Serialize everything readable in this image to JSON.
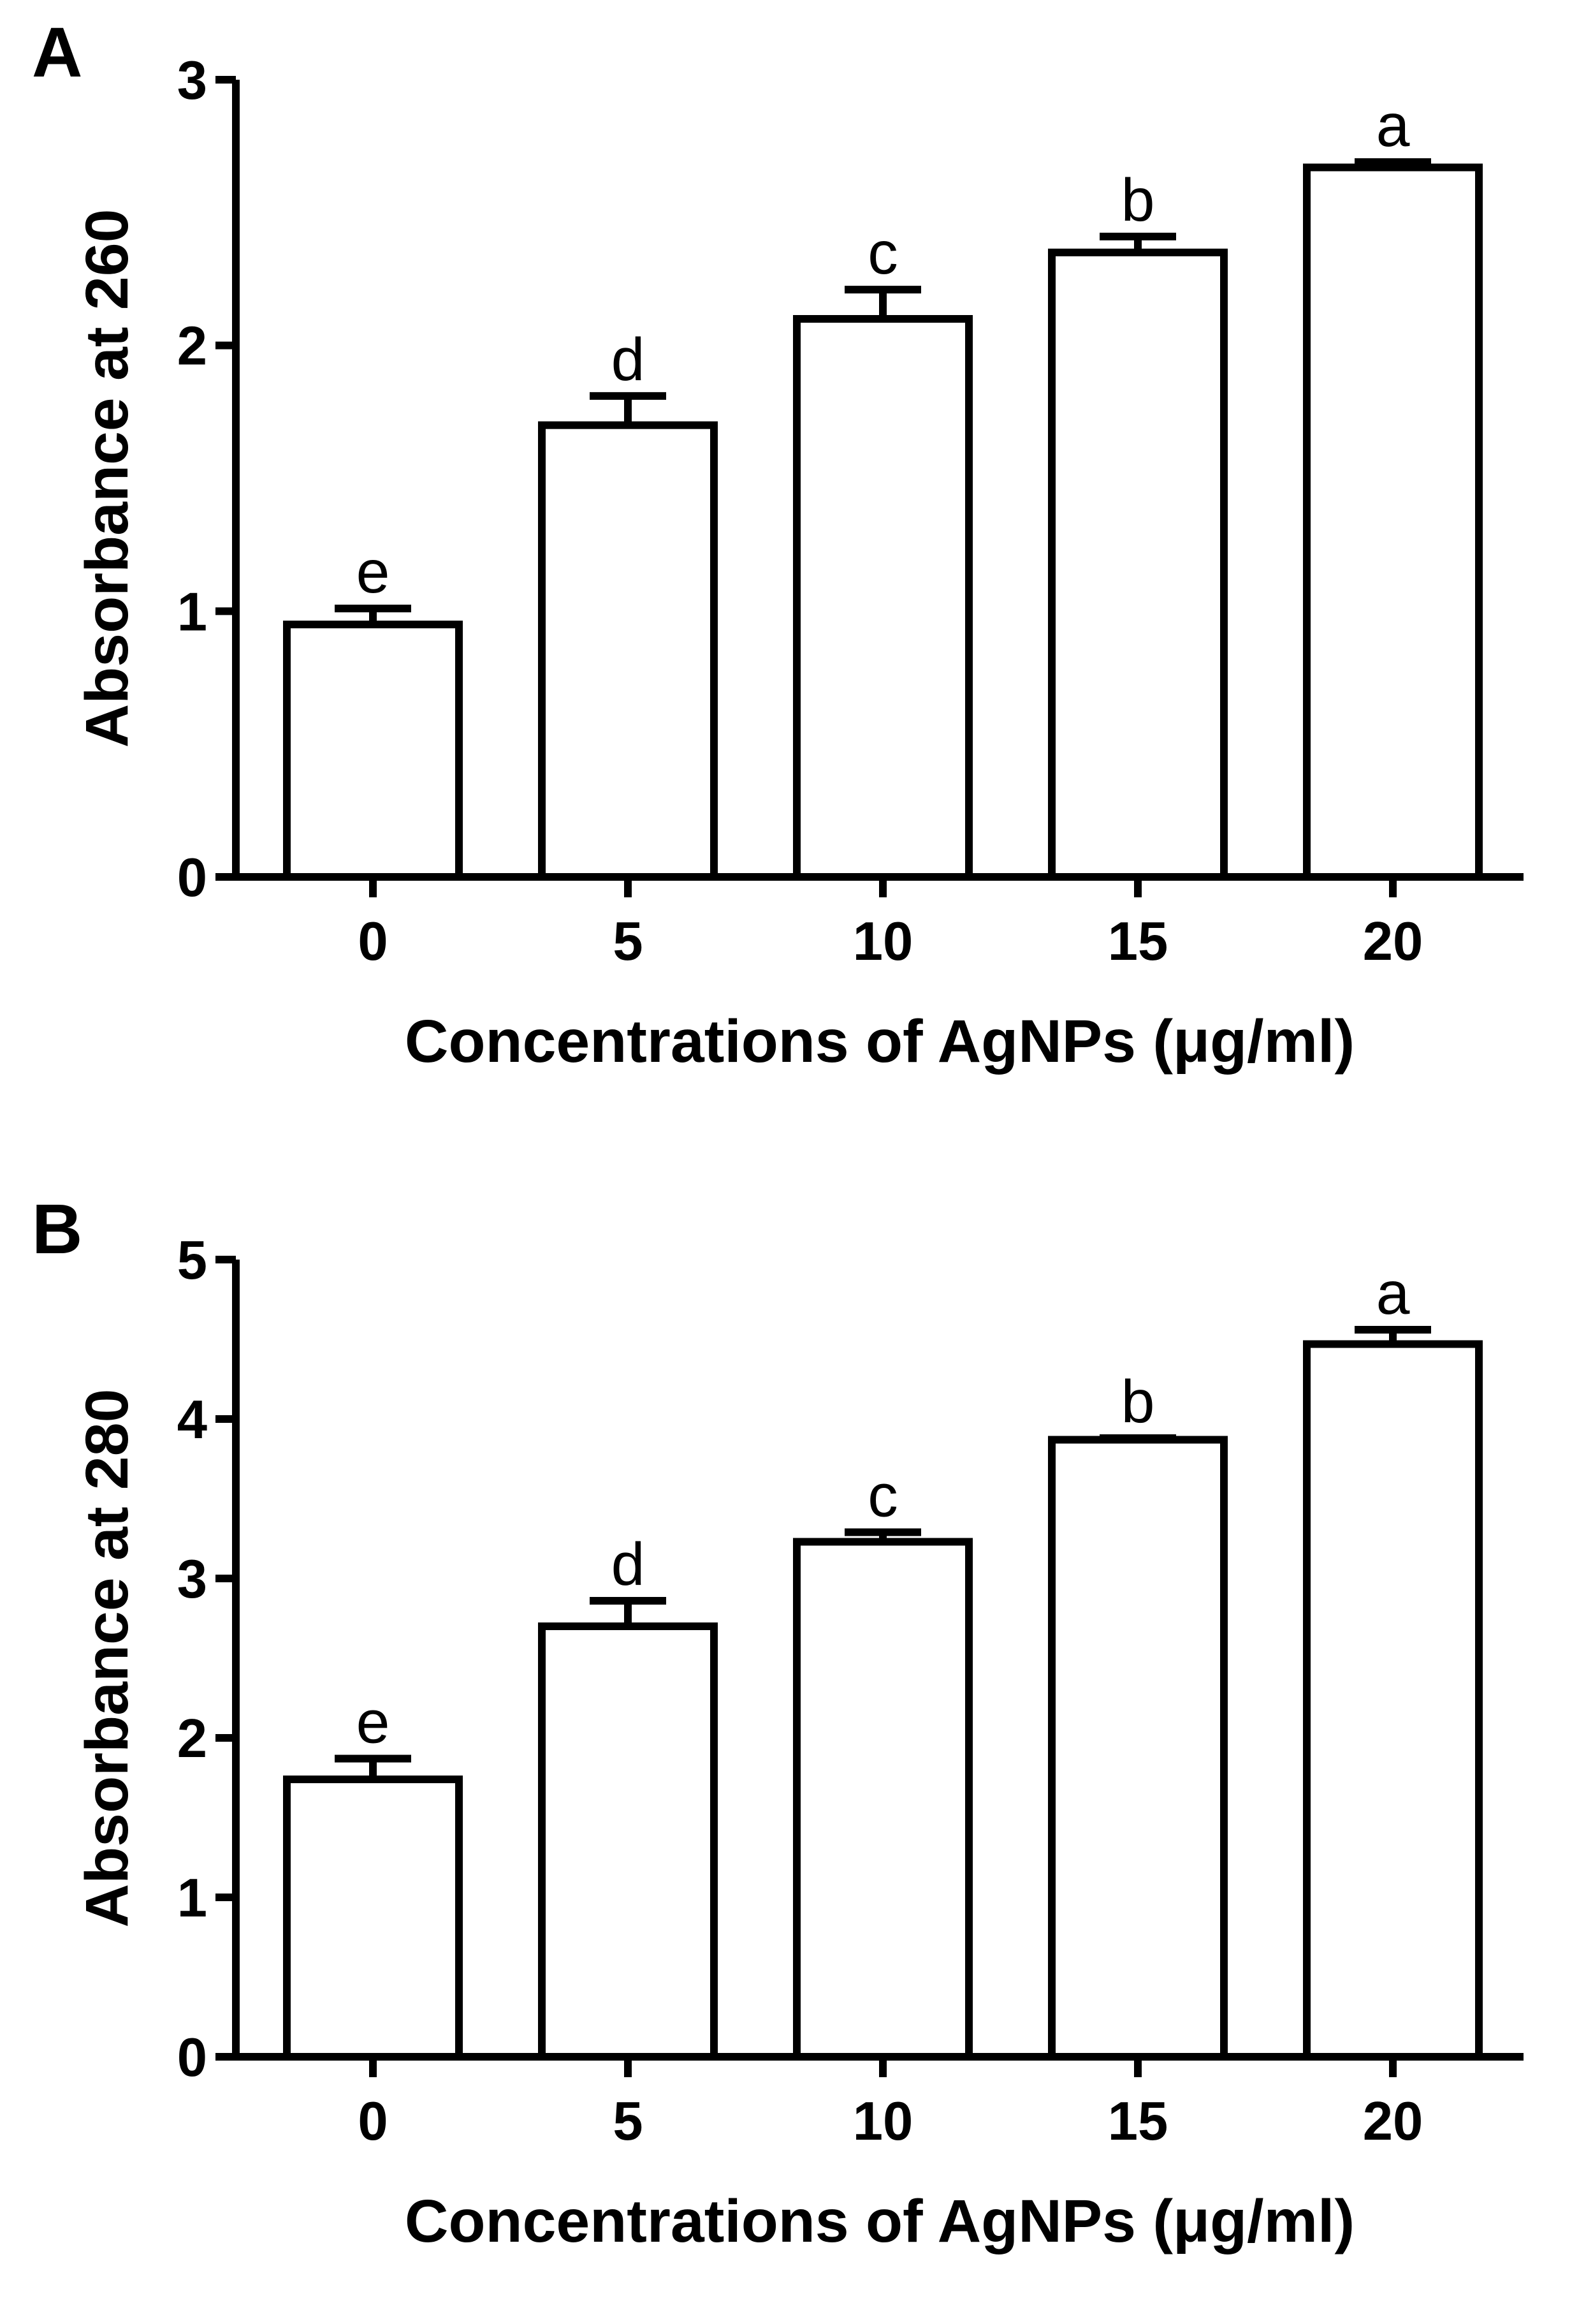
{
  "chart_data": [
    {
      "panel_label": "A",
      "type": "bar",
      "categories": [
        "0",
        "5",
        "10",
        "15",
        "20"
      ],
      "values": [
        0.95,
        1.7,
        2.1,
        2.35,
        2.67
      ],
      "errors": [
        0.06,
        0.11,
        0.11,
        0.06,
        0.02
      ],
      "significance_letters": [
        "e",
        "d",
        "c",
        "b",
        "a"
      ],
      "xlabel": "Concentrations of AgNPs (μg/ml)",
      "ylabel": "Absorbance at 260",
      "ylim": [
        0,
        3
      ],
      "yticks": [
        "0",
        "1",
        "2",
        "3"
      ],
      "grid": false
    },
    {
      "panel_label": "B",
      "type": "bar",
      "categories": [
        "0",
        "5",
        "10",
        "15",
        "20"
      ],
      "values": [
        1.74,
        2.7,
        3.23,
        3.87,
        4.47
      ],
      "errors": [
        0.13,
        0.16,
        0.06,
        0.01,
        0.09
      ],
      "significance_letters": [
        "e",
        "d",
        "c",
        "b",
        "a"
      ],
      "xlabel": "Concentrations of AgNPs (μg/ml)",
      "ylabel": "Absorbance at 280",
      "ylim": [
        0,
        5
      ],
      "yticks": [
        "0",
        "1",
        "2",
        "3",
        "4",
        "5"
      ],
      "grid": false
    }
  ]
}
